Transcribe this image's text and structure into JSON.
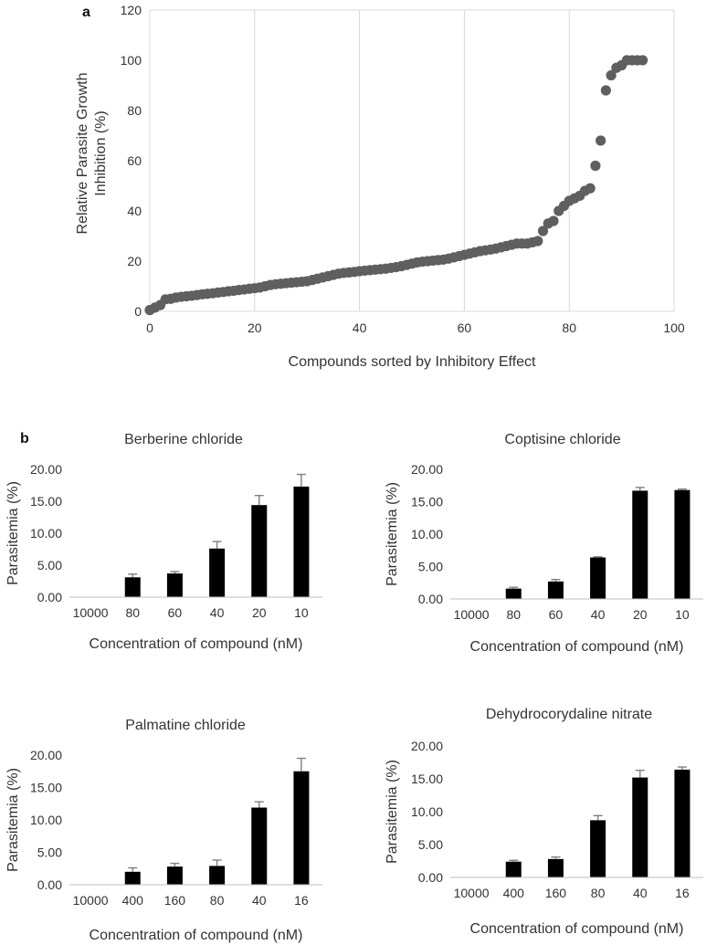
{
  "panel_labels": {
    "a": "a",
    "b": "b"
  },
  "colors": {
    "point": "#5f5f5f",
    "bar": "#000000",
    "error": "#7f7f7f",
    "grid": "#d9d9d9",
    "axis": "#bfbfbf"
  },
  "chart_data": [
    {
      "id": "a",
      "type": "scatter",
      "title": "",
      "xlabel": "Compounds sorted by Inhibitory Effect",
      "ylabel_lines": [
        "Relative  Parasite Growth",
        "Inhibition (%)"
      ],
      "xlim": [
        0,
        100
      ],
      "ylim": [
        0,
        120
      ],
      "xticks": [
        "0",
        "20",
        "40",
        "60",
        "80",
        "100"
      ],
      "yticks": [
        "0",
        "20",
        "40",
        "60",
        "80",
        "100",
        "120"
      ],
      "grid": "vertical",
      "x": [
        0,
        1,
        2,
        3,
        4,
        5,
        6,
        7,
        8,
        9,
        10,
        11,
        12,
        13,
        14,
        15,
        16,
        17,
        18,
        19,
        20,
        21,
        22,
        23,
        24,
        25,
        26,
        27,
        28,
        29,
        30,
        31,
        32,
        33,
        34,
        35,
        36,
        37,
        38,
        39,
        40,
        41,
        42,
        43,
        44,
        45,
        46,
        47,
        48,
        49,
        50,
        51,
        52,
        53,
        54,
        55,
        56,
        57,
        58,
        59,
        60,
        61,
        62,
        63,
        64,
        65,
        66,
        67,
        68,
        69,
        70,
        71,
        72,
        73,
        74,
        75,
        76,
        77,
        78,
        79,
        80,
        81,
        82,
        83,
        84,
        85,
        86,
        87,
        88,
        89,
        90,
        91,
        92,
        93,
        94
      ],
      "y": [
        0.5,
        1.5,
        2.5,
        4.8,
        5,
        5.5,
        5.8,
        6,
        6.2,
        6.5,
        6.8,
        7,
        7.2,
        7.5,
        7.7,
        8,
        8.2,
        8.5,
        8.7,
        9,
        9.2,
        9.5,
        10,
        10.5,
        10.8,
        11,
        11.2,
        11.4,
        11.6,
        11.8,
        12,
        12.5,
        13,
        13.5,
        14,
        14.5,
        15,
        15.3,
        15.5,
        15.7,
        16,
        16.2,
        16.4,
        16.6,
        16.8,
        17,
        17.3,
        17.6,
        18,
        18.5,
        19,
        19.5,
        19.8,
        20,
        20.2,
        20.4,
        20.6,
        21,
        21.5,
        22,
        22.5,
        23,
        23.5,
        24,
        24.3,
        24.6,
        25,
        25.5,
        26,
        26.5,
        27,
        27,
        27,
        27.5,
        28,
        32,
        35,
        36,
        40,
        42,
        44,
        45,
        46,
        48,
        49,
        58,
        68,
        88,
        94,
        97,
        98,
        100,
        100,
        100,
        100
      ]
    },
    {
      "id": "b1",
      "type": "bar",
      "title": "Berberine chloride",
      "xlabel": "Concentration of compound (nM)",
      "ylabel": "Parasitemia (%)",
      "ylim": [
        0,
        20
      ],
      "yticks": [
        "0.00",
        "5.00",
        "10.00",
        "15.00",
        "20.00"
      ],
      "categories": [
        "10000",
        "80",
        "60",
        "40",
        "20",
        "10"
      ],
      "values": [
        0,
        3.1,
        3.7,
        7.6,
        14.4,
        17.3
      ],
      "errors": [
        0,
        0.5,
        0.3,
        1.1,
        1.5,
        1.9
      ]
    },
    {
      "id": "b2",
      "type": "bar",
      "title": "Coptisine chloride",
      "xlabel": "Concentration of compound (nM)",
      "ylabel": "Parasitemia (%)",
      "ylim": [
        0,
        20
      ],
      "yticks": [
        "0.00",
        "5.00",
        "10.00",
        "15.00",
        "20.00"
      ],
      "categories": [
        "10000",
        "80",
        "60",
        "40",
        "20",
        "10"
      ],
      "values": [
        0,
        1.6,
        2.7,
        6.4,
        16.7,
        16.8
      ],
      "errors": [
        0,
        0.2,
        0.3,
        0.1,
        0.5,
        0.15
      ]
    },
    {
      "id": "b3",
      "type": "bar",
      "title": "Palmatine chloride",
      "xlabel": "Concentration of compound (nM)",
      "ylabel": "Parasitemia (%)",
      "ylim": [
        0,
        20
      ],
      "yticks": [
        "0.00",
        "5.00",
        "10.00",
        "15.00",
        "20.00"
      ],
      "categories": [
        "10000",
        "400",
        "160",
        "80",
        "40",
        "16"
      ],
      "values": [
        0,
        2.0,
        2.8,
        2.9,
        11.9,
        17.5
      ],
      "errors": [
        0,
        0.6,
        0.5,
        0.9,
        0.9,
        2.0
      ]
    },
    {
      "id": "b4",
      "type": "bar",
      "title": "Dehydrocorydaline nitrate",
      "xlabel": "Concentration of compound (nM)",
      "ylabel": "Parasitemia (%)",
      "ylim": [
        0,
        20
      ],
      "yticks": [
        "0.00",
        "5.00",
        "10.00",
        "15.00",
        "20.00"
      ],
      "categories": [
        "10000",
        "400",
        "160",
        "80",
        "40",
        "16"
      ],
      "values": [
        0,
        2.4,
        2.8,
        8.7,
        15.2,
        16.4
      ],
      "errors": [
        0,
        0.2,
        0.3,
        0.7,
        1.1,
        0.4
      ]
    }
  ]
}
